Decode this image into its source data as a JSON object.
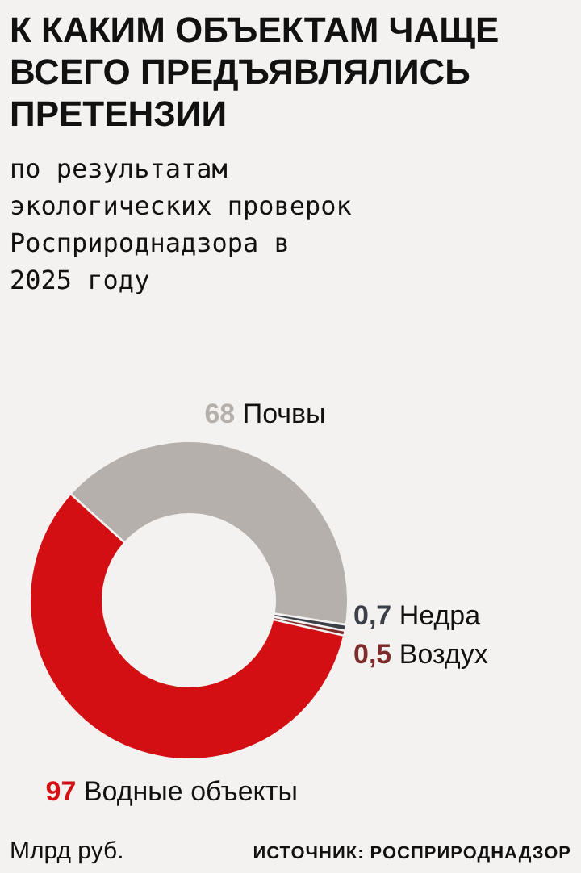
{
  "chart_data": {
    "type": "donut",
    "title": "К КАКИМ ОБЪЕКТАМ ЧАЩЕ ВСЕГО ПРЕДЪЯВЛЯЛИСЬ ПРЕТЕНЗИИ",
    "subtitle": "по результатам экологических проверок Росприроднадзора в 2025 году",
    "categories": [
      "Почвы",
      "Недра",
      "Воздух",
      "Водные объекты"
    ],
    "values": [
      68,
      0.7,
      0.5,
      97
    ],
    "value_labels": [
      "68",
      "0,7",
      "0,5",
      "97"
    ],
    "colors": [
      "#b5b0ac",
      "#3b3f47",
      "#7d2b2b",
      "#d40f14"
    ],
    "annotations": [
      "Млрд руб.",
      "ИСТОЧНИК: РОСПРИРОДНАДЗОР"
    ]
  }
}
